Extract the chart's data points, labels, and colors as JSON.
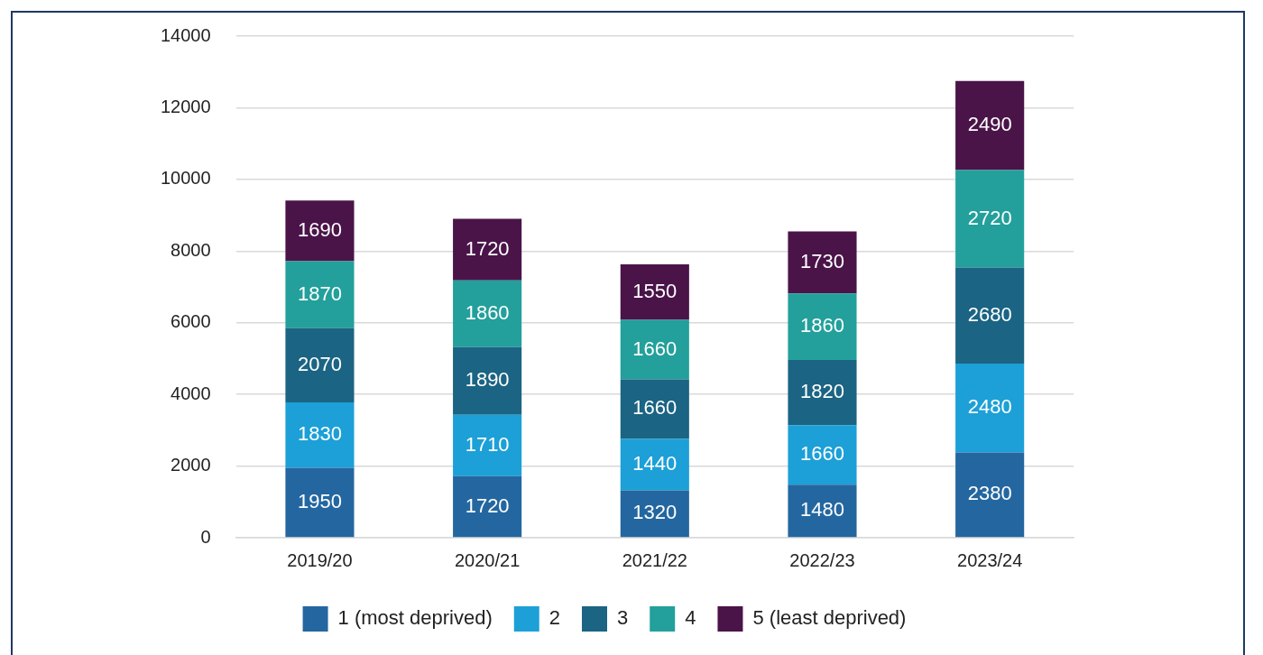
{
  "chart_data": {
    "type": "bar",
    "stacked": true,
    "categories": [
      "2019/20",
      "2020/21",
      "2021/22",
      "2022/23",
      "2023/24"
    ],
    "series": [
      {
        "name": "1 (most deprived)",
        "color": "#2467a0",
        "values": [
          1950,
          1720,
          1320,
          1480,
          2380
        ]
      },
      {
        "name": "2",
        "color": "#1ca0d7",
        "values": [
          1830,
          1710,
          1440,
          1660,
          2480
        ]
      },
      {
        "name": "3",
        "color": "#1b6483",
        "values": [
          2070,
          1890,
          1660,
          1820,
          2680
        ]
      },
      {
        "name": "4",
        "color": "#23a09b",
        "values": [
          1870,
          1860,
          1660,
          1860,
          2720
        ]
      },
      {
        "name": "5 (least deprived)",
        "color": "#4a1449",
        "values": [
          1690,
          1720,
          1550,
          1730,
          2490
        ]
      }
    ],
    "ylim": [
      0,
      14000
    ],
    "yticks": [
      0,
      2000,
      4000,
      6000,
      8000,
      10000,
      12000,
      14000
    ],
    "grid": "y",
    "legend": "bottom",
    "data_labels": true
  }
}
